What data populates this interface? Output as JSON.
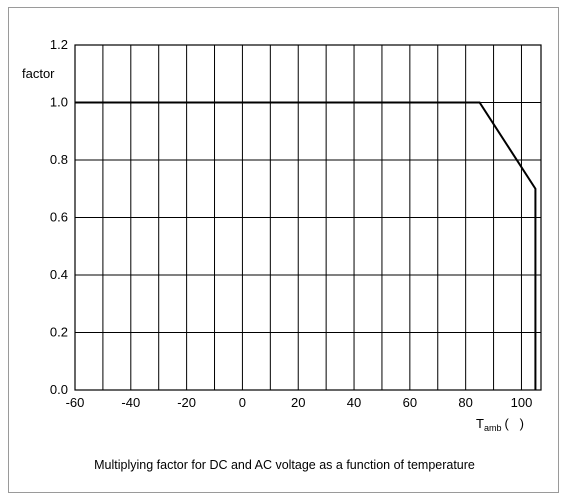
{
  "chart_data": {
    "type": "line",
    "title": "",
    "ylabel": "factor",
    "xlabel": {
      "main": "T",
      "sub": "amb",
      "unit": "(   )"
    },
    "caption": "Multiplying factor for DC and AC voltage as a function of temperature",
    "xlim": [
      -60,
      107
    ],
    "ylim": [
      0,
      1.2
    ],
    "x_ticks": [
      -60,
      -40,
      -20,
      0,
      20,
      40,
      60,
      80,
      100
    ],
    "x_tick_labels": [
      "-60",
      "-40",
      "-20",
      "0",
      "20",
      "40",
      "60",
      "80",
      "100"
    ],
    "y_ticks": [
      0.0,
      0.2,
      0.4,
      0.6,
      0.8,
      1.0,
      1.2
    ],
    "y_tick_labels": [
      "0.0",
      "0.2",
      "0.4",
      "0.6",
      "0.8",
      "1.0",
      "1.2"
    ],
    "x_grid_step": 10,
    "grid": true,
    "series": [
      {
        "x": [
          -60,
          85,
          105,
          105
        ],
        "y": [
          1.0,
          1.0,
          0.7,
          0.0
        ]
      }
    ],
    "colors": {
      "line": "#000000",
      "grid": "#000000"
    }
  }
}
